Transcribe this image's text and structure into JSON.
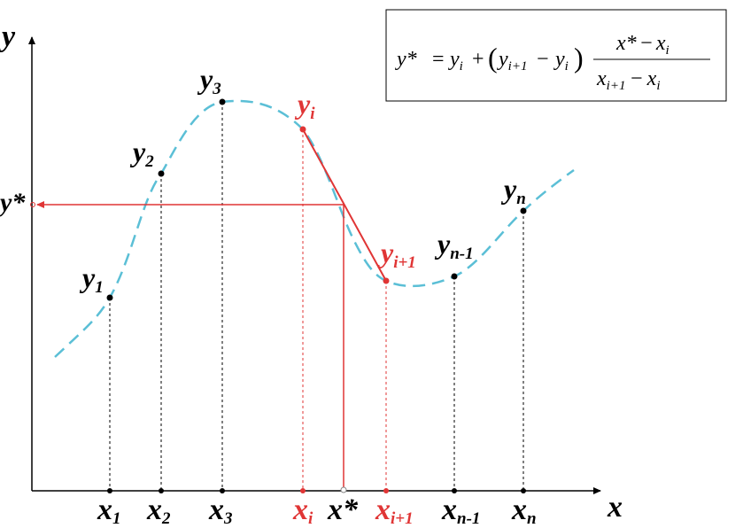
{
  "axes": {
    "x_label": "x",
    "y_label": "y"
  },
  "points": [
    {
      "id": "1",
      "x_label": "x",
      "x_sub": "1",
      "y_label": "y",
      "y_sub": "1"
    },
    {
      "id": "2",
      "x_label": "x",
      "x_sub": "2",
      "y_label": "y",
      "y_sub": "2"
    },
    {
      "id": "3",
      "x_label": "x",
      "x_sub": "3",
      "y_label": "y",
      "y_sub": "3"
    },
    {
      "id": "i",
      "x_label": "x",
      "x_sub": "i",
      "y_label": "y",
      "y_sub": "i"
    },
    {
      "id": "i1",
      "x_label": "x",
      "x_sub": "i+1",
      "y_label": "y",
      "y_sub": "i+1"
    },
    {
      "id": "n1",
      "x_label": "x",
      "x_sub": "n-1",
      "y_label": "y",
      "y_sub": "n-1"
    },
    {
      "id": "n",
      "x_label": "x",
      "x_sub": "n",
      "y_label": "y",
      "y_sub": "n"
    }
  ],
  "interp": {
    "x_label": "x*",
    "y_label": "y*"
  },
  "formula": {
    "lhs": "y*",
    "eq": "=",
    "t1": "y",
    "t1_sub": "i",
    "plus": "+",
    "lparen": "(",
    "t2": "y",
    "t2_sub": "i+1",
    "minus": "−",
    "t3": "y",
    "t3_sub": "i",
    "rparen": ")",
    "num_a": "x",
    "num_a_sup": "*",
    "num_minus": "−",
    "num_b": "x",
    "num_b_sub": "i",
    "den_a": "x",
    "den_a_sub": "i+1",
    "den_minus": "−",
    "den_b": "x",
    "den_b_sub": "i"
  },
  "colors": {
    "curve": "#5bbfd6",
    "highlight": "#e03535",
    "axis": "#000000"
  }
}
